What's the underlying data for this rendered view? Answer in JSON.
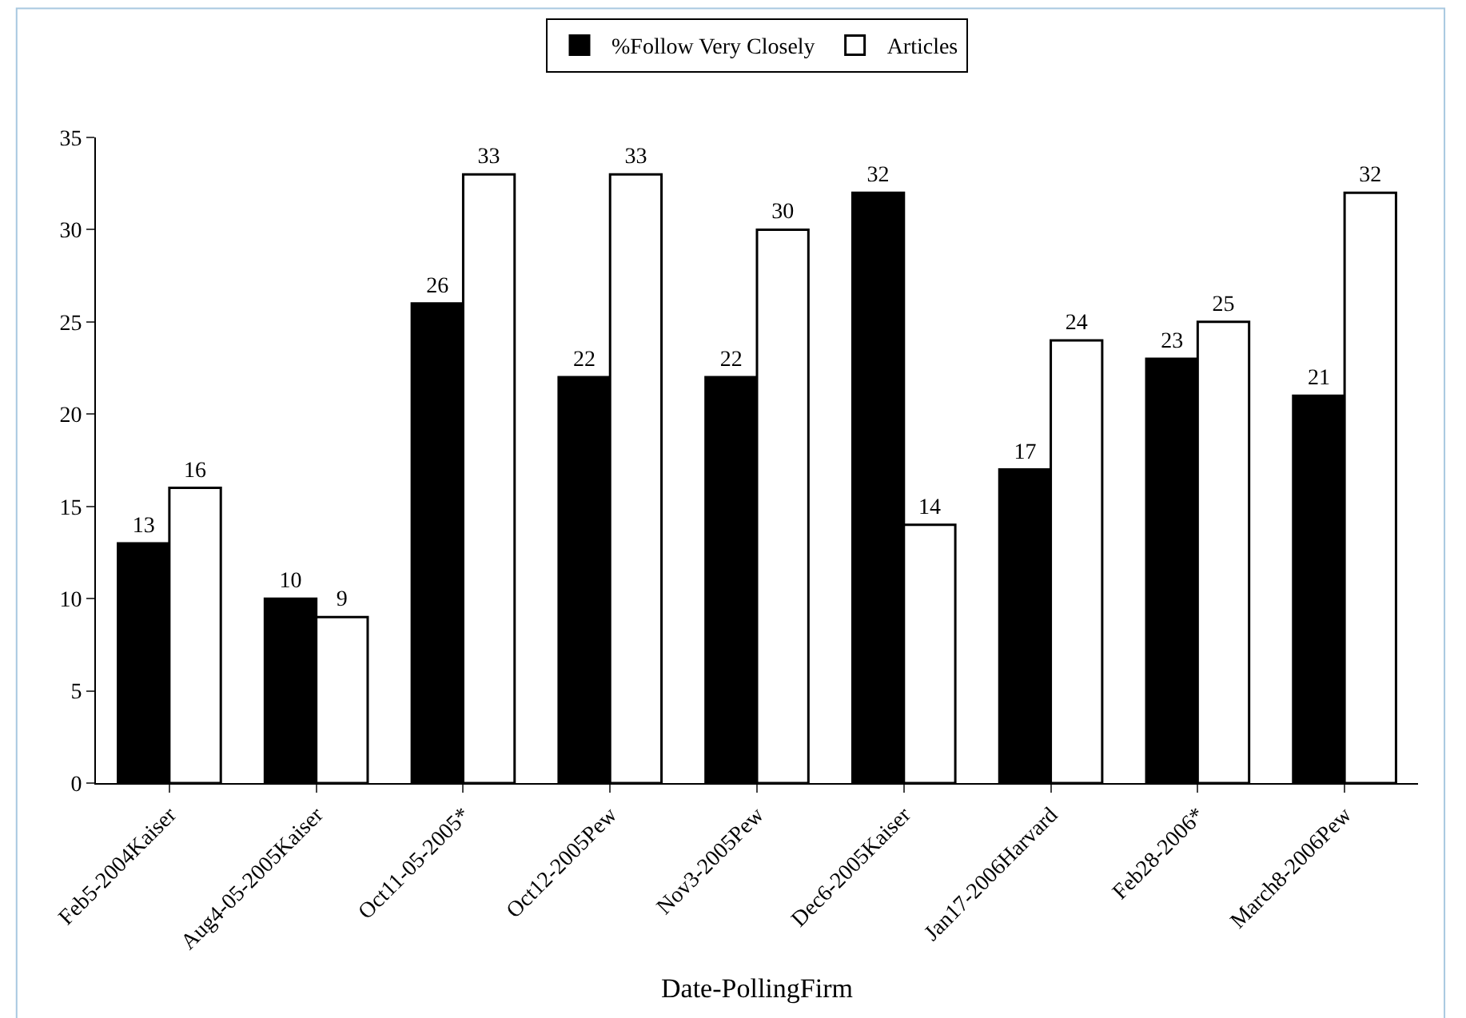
{
  "chart_data": {
    "type": "bar",
    "xlabel": "Date-PollingFirm",
    "categories": [
      "Feb5-2004Kaiser",
      "Aug4-05-2005Kaiser",
      "Oct11-05-2005*",
      "Oct12-2005Pew",
      "Nov3-2005Pew",
      "Dec6-2005Kaiser",
      "Jan17-2006Harvard",
      "Feb28-2006*",
      "March8-2006Pew"
    ],
    "series": [
      {
        "name": "%Follow Very Closely",
        "color": "#000000",
        "values": [
          13,
          10,
          26,
          22,
          22,
          32,
          17,
          23,
          21
        ]
      },
      {
        "name": "Articles",
        "color": "#ffffff",
        "values": [
          16,
          9,
          33,
          33,
          30,
          14,
          24,
          25,
          32
        ]
      }
    ],
    "ylim": [
      0,
      35
    ],
    "yticks": [
      0,
      5,
      10,
      15,
      20,
      25,
      30,
      35
    ],
    "data_labels": true,
    "legend": "top"
  }
}
